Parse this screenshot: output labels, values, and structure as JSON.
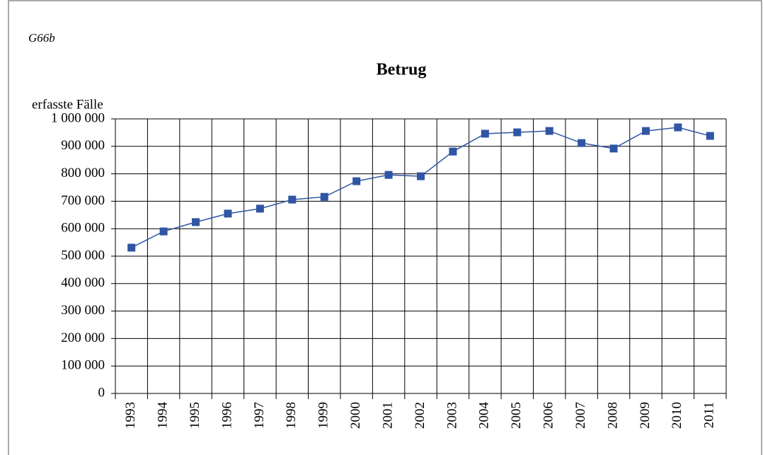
{
  "chart_data": {
    "type": "line",
    "code": "G66b",
    "title": "Betrug",
    "ylabel": "erfasste Fälle",
    "categories": [
      "1993",
      "1994",
      "1995",
      "1996",
      "1997",
      "1998",
      "1999",
      "2000",
      "2001",
      "2002",
      "2003",
      "2004",
      "2005",
      "2006",
      "2007",
      "2008",
      "2009",
      "2010",
      "2011"
    ],
    "series": [
      {
        "name": "Betrug",
        "color": "#2f55a4",
        "values": [
          531000,
          590000,
          624000,
          655000,
          673000,
          706000,
          716000,
          773000,
          796000,
          791000,
          881000,
          946000,
          951000,
          956000,
          912000,
          892000,
          956000,
          969000,
          938000
        ]
      }
    ],
    "ylim": [
      0,
      1000000
    ],
    "yticks": [
      0,
      {
        "value": 100000,
        "label": "100 000"
      },
      {
        "value": 200000,
        "label": "200 000"
      },
      {
        "value": 300000,
        "label": "300 000"
      },
      {
        "value": 400000,
        "label": "400 000"
      },
      {
        "value": 500000,
        "label": "500 000"
      },
      {
        "value": 600000,
        "label": "600 000"
      },
      {
        "value": 700000,
        "label": "700 000"
      },
      {
        "value": 800000,
        "label": "800 000"
      },
      {
        "value": 900000,
        "label": "900 000"
      },
      {
        "value": 1000000,
        "label": "1 000 000"
      }
    ],
    "grid": true
  }
}
